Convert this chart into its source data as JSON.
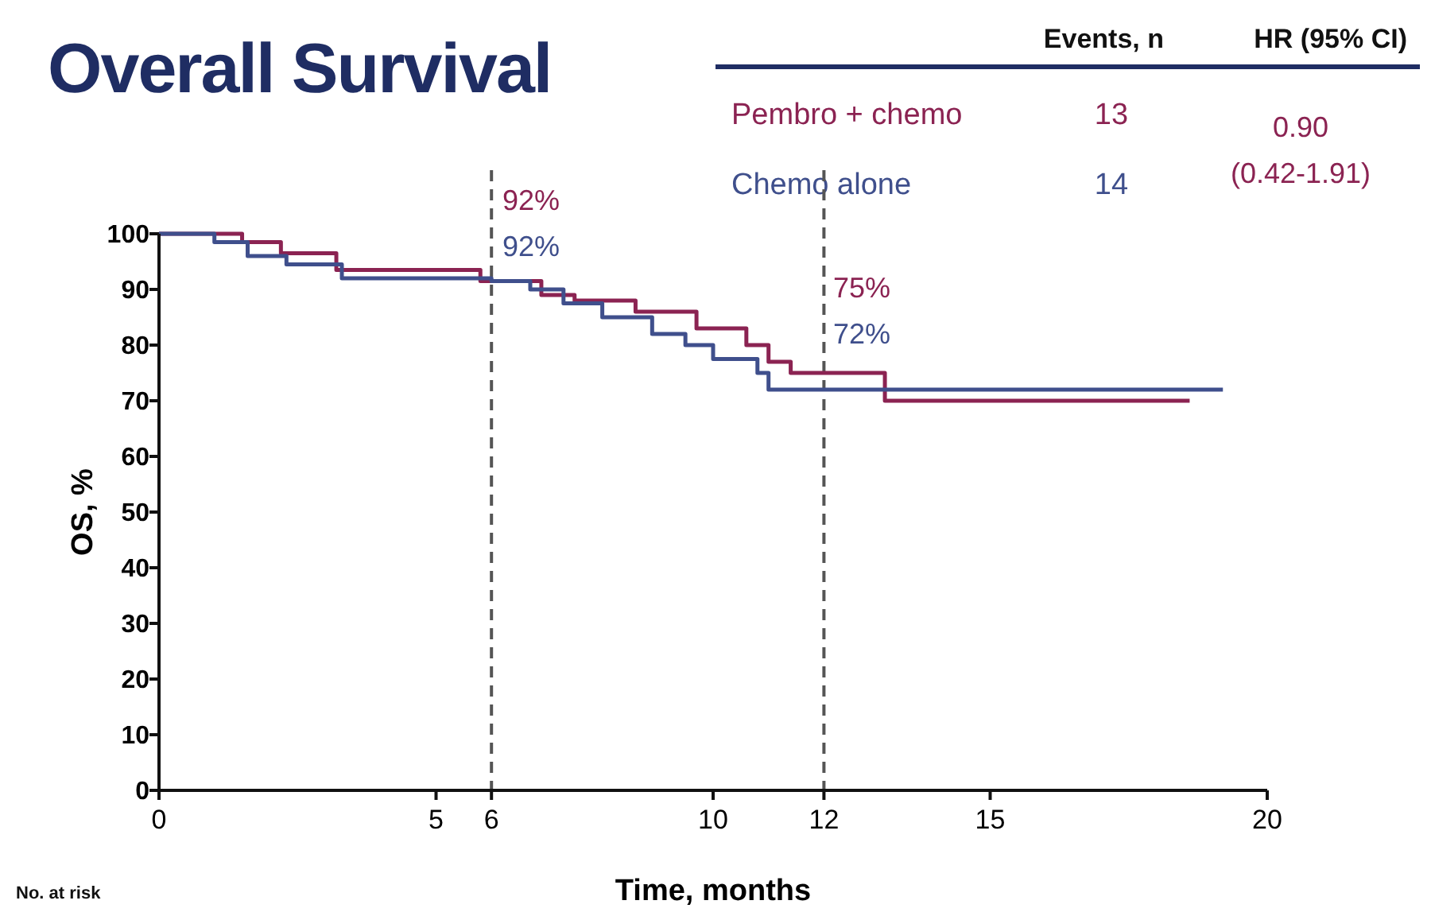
{
  "chart_data": {
    "type": "step",
    "title": "Overall Survival",
    "xlabel": "Time, months",
    "ylabel": "OS, %",
    "xlim": [
      0,
      20
    ],
    "xticks": [
      0,
      5,
      6,
      10,
      12,
      15,
      20
    ],
    "ylim": [
      0,
      100
    ],
    "yticks": [
      0,
      10,
      20,
      30,
      40,
      50,
      60,
      70,
      80,
      90,
      100
    ],
    "legend": "top right",
    "marker": "none",
    "line_style": "solid",
    "grid": false,
    "series": [
      {
        "name": "Pembro + chemo",
        "color": "#8b2352",
        "x": [
          0,
          1.5,
          2.2,
          3.2,
          5.8,
          6.9,
          7.5,
          8.6,
          9.7,
          10.6,
          11.0,
          11.4,
          13.1,
          18.6
        ],
        "values": [
          100,
          98.5,
          96.5,
          93.5,
          91.5,
          89,
          88,
          86,
          83,
          80,
          77,
          75,
          70,
          70
        ]
      },
      {
        "name": "Chemo alone",
        "color": "#3f4f8c",
        "x": [
          0,
          1.0,
          1.6,
          2.3,
          3.3,
          6.0,
          6.7,
          7.3,
          8.0,
          8.9,
          9.5,
          10.0,
          10.8,
          11.0,
          19.2
        ],
        "values": [
          100,
          98.5,
          96,
          94.5,
          92,
          91.5,
          90,
          87.5,
          85,
          82,
          80,
          77.5,
          75,
          72,
          72
        ]
      }
    ],
    "ref_lines": [
      {
        "axis": "x",
        "value": 6,
        "line_style": "dashed",
        "color": "#555555"
      },
      {
        "axis": "x",
        "value": 12,
        "line_style": "dashed",
        "color": "#555555"
      }
    ],
    "annotations": [
      "Events, n",
      "HR (95% CI)",
      "13",
      "14",
      "0.90",
      "(0.42-1.91)",
      "No. at risk",
      "92%",
      "92%",
      "75%",
      "72%"
    ]
  }
}
